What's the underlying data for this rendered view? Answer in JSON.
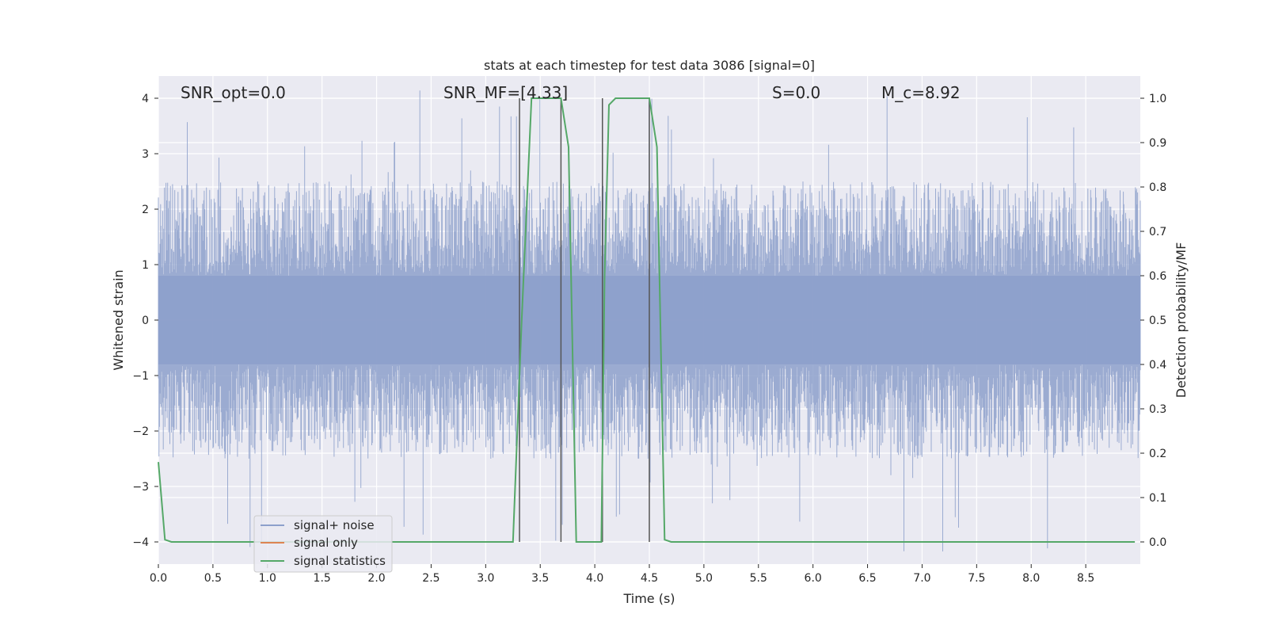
{
  "chart_data": {
    "type": "line",
    "title": "stats at each timestep for test data 3086 [signal=0]",
    "xlabel": "Time (s)",
    "ylabel_left": "Whitened strain",
    "ylabel_right": "Detection probability/MF",
    "xlim": [
      0,
      9.0
    ],
    "ylim_left": [
      -4.4,
      4.4
    ],
    "ylim_right": [
      -0.05,
      1.05
    ],
    "x_ticks": [
      "0.0",
      "0.5",
      "1.0",
      "1.5",
      "2.0",
      "2.5",
      "3.0",
      "3.5",
      "4.0",
      "4.5",
      "5.0",
      "5.5",
      "6.0",
      "6.5",
      "7.0",
      "7.5",
      "8.0",
      "8.5"
    ],
    "y_left_ticks": [
      "4",
      "3",
      "2",
      "1",
      "0",
      "−1",
      "−2",
      "−3",
      "−4"
    ],
    "y_right_ticks": [
      "1.0",
      "0.9",
      "0.8",
      "0.7",
      "0.6",
      "0.5",
      "0.4",
      "0.3",
      "0.2",
      "0.1",
      "0.0"
    ],
    "grid": true,
    "legend_position": "lower-left",
    "legend": [
      {
        "label": "signal+ noise",
        "color": "#8da0cb"
      },
      {
        "label": "signal only",
        "color": "#dd8452"
      },
      {
        "label": "signal statistics",
        "color": "#55a868"
      }
    ],
    "annotations": [
      {
        "label": "SNR_opt=0.0",
        "x": 0.2,
        "y": 4.1
      },
      {
        "label": "SNR_MF=[4.33]",
        "x": 2.6,
        "y": 4.1
      },
      {
        "label": "S=0.0",
        "x": 5.6,
        "y": 4.1
      },
      {
        "label": "M_c=8.92",
        "x": 6.6,
        "y": 4.1
      }
    ],
    "noise": {
      "name": "signal+ noise",
      "color": "#8da0cb",
      "t_start": 0.0,
      "t_end": 9.0,
      "bands": [
        0.8,
        1.6
      ]
    },
    "series": [
      {
        "name": "signal statistics",
        "axis": "right",
        "color": "#55a868",
        "x": [
          0.0,
          0.06,
          0.12,
          3.25,
          3.33,
          3.42,
          3.69,
          3.76,
          3.83,
          4.06,
          4.09,
          4.13,
          4.19,
          4.5,
          4.57,
          4.64,
          4.7,
          8.95
        ],
        "y": [
          0.18,
          0.005,
          0.0,
          0.0,
          0.5,
          1.0,
          1.0,
          0.89,
          0.0,
          0.0,
          0.6,
          0.985,
          1.0,
          1.0,
          0.89,
          0.005,
          0.0,
          0.0
        ]
      }
    ],
    "markers": {
      "color": "#555555",
      "x": [
        3.31,
        3.69,
        4.07,
        4.5
      ],
      "y_range": [
        0.0,
        1.0
      ]
    }
  }
}
